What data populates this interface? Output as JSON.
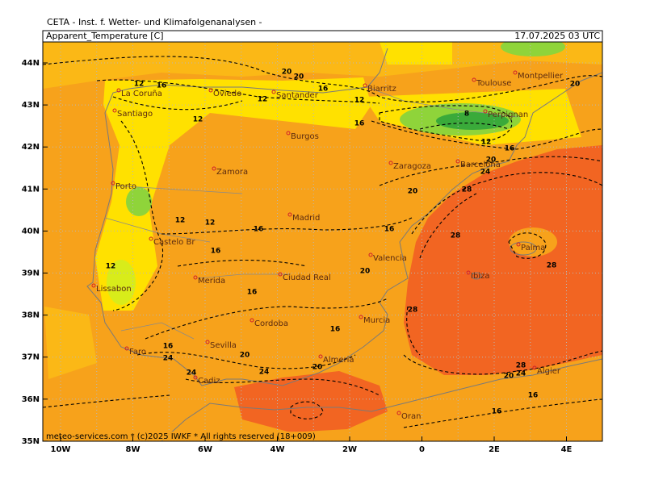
{
  "header": {
    "institute": "CETA - Inst. f. Wetter- und Klimafolgenanalysen -",
    "field": "Apparent_Temperature [C]",
    "timestamp": "17.07.2025 03 UTC"
  },
  "axes": {
    "lat_labels": [
      "44N",
      "43N",
      "42N",
      "41N",
      "40N",
      "39N",
      "38N",
      "37N",
      "36N",
      "35N"
    ],
    "lon_labels": [
      "10W",
      "8W",
      "6W",
      "4W",
      "2W",
      "0",
      "2E",
      "4E"
    ]
  },
  "cities": [
    "La Coruña",
    "Oviedo",
    "Santander",
    "Biarritz",
    "Toulouse",
    "Montpellier",
    "Santiago",
    "Perpignan",
    "Burgos",
    "Zaragoza",
    "Barcelona",
    "Porto",
    "Zamora",
    "Madrid",
    "Castelo Br",
    "Valencia",
    "Palma",
    "Merida",
    "Ciudad Real",
    "Ibiza",
    "Lissabon",
    "Murcia",
    "Cordoba",
    "Faro",
    "Sevilla",
    "Almeria",
    "Algier",
    "Cadiz",
    "Oran"
  ],
  "contour_labels": [
    12,
    16,
    20,
    20,
    16,
    12,
    12,
    12,
    16,
    8,
    12,
    16,
    20,
    24,
    28,
    20,
    12,
    12,
    16,
    16,
    28,
    16,
    20,
    28,
    12,
    16,
    16,
    16,
    24,
    20,
    20,
    24,
    28,
    24,
    20,
    24,
    16,
    28,
    16,
    20
  ],
  "footer": "meteo-services.com * (c)2025 IWKF * All rights reserved (18+009)"
}
